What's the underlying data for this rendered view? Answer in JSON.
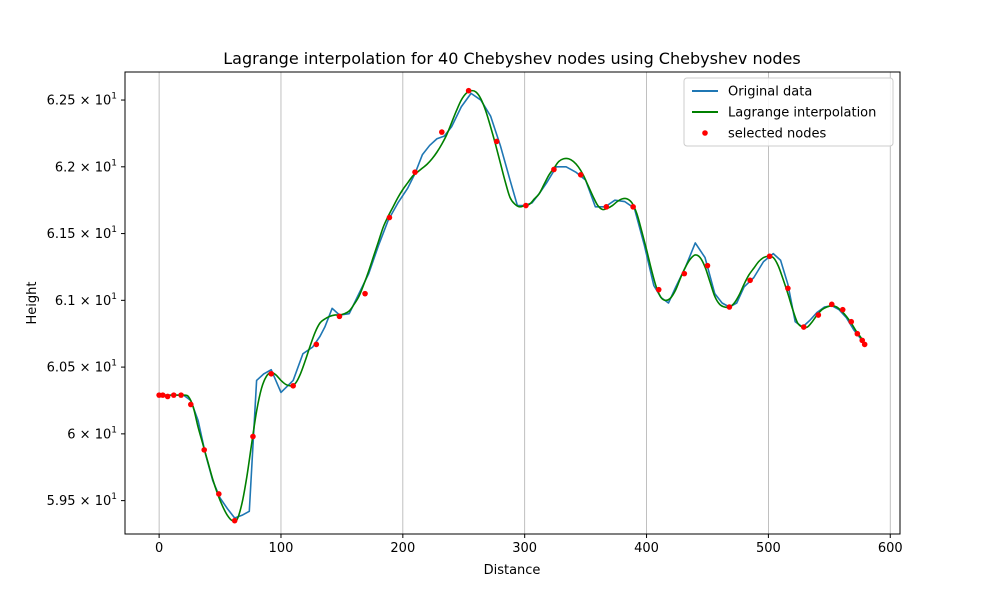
{
  "chart_data": {
    "type": "line",
    "title": "Lagrange interpolation for 40 Chebyshev nodes using Chebyshev nodes",
    "xlabel": "Distance",
    "ylabel": "Height",
    "xlim": [
      -28,
      608
    ],
    "ylim": [
      59.25,
      62.71
    ],
    "x_ticks": [
      {
        "value": 0,
        "label": "0"
      },
      {
        "value": 100,
        "label": "100"
      },
      {
        "value": 200,
        "label": "200"
      },
      {
        "value": 300,
        "label": "300"
      },
      {
        "value": 400,
        "label": "400"
      },
      {
        "value": 500,
        "label": "500"
      },
      {
        "value": 600,
        "label": "600"
      }
    ],
    "y_ticks": [
      {
        "value": 59.5,
        "mantissa": "5.95",
        "exp": "1"
      },
      {
        "value": 60.0,
        "mantissa": "6",
        "exp": "1"
      },
      {
        "value": 60.5,
        "mantissa": "6.05",
        "exp": "1"
      },
      {
        "value": 61.0,
        "mantissa": "6.1",
        "exp": "1"
      },
      {
        "value": 61.5,
        "mantissa": "6.15",
        "exp": "1"
      },
      {
        "value": 62.0,
        "mantissa": "6.2",
        "exp": "1"
      },
      {
        "value": 62.5,
        "mantissa": "6.25",
        "exp": "1"
      }
    ],
    "grid": "x-major",
    "legend_position": "top-right",
    "series": [
      {
        "name": "Original data",
        "kind": "line",
        "color": "#1f77b4",
        "x": [
          0,
          10,
          20,
          26,
          32,
          38,
          44,
          50,
          56,
          62,
          68,
          74,
          80,
          86,
          92,
          100,
          110,
          118,
          126,
          132,
          136,
          142,
          148,
          156,
          164,
          172,
          180,
          188,
          196,
          204,
          210,
          216,
          222,
          228,
          234,
          240,
          248,
          256,
          264,
          272,
          280,
          288,
          294,
          300,
          306,
          312,
          318,
          326,
          334,
          342,
          350,
          358,
          366,
          374,
          382,
          390,
          398,
          406,
          412,
          418,
          424,
          432,
          440,
          448,
          456,
          462,
          468,
          474,
          480,
          488,
          496,
          504,
          510,
          516,
          522,
          528,
          534,
          540,
          546,
          552,
          558,
          564,
          570,
          576,
          580
        ],
        "y": [
          60.29,
          60.29,
          60.29,
          60.25,
          60.1,
          59.85,
          59.65,
          59.52,
          59.44,
          59.37,
          59.39,
          59.42,
          60.4,
          60.45,
          60.48,
          60.31,
          60.4,
          60.6,
          60.65,
          60.73,
          60.8,
          60.94,
          60.89,
          60.9,
          61.05,
          61.2,
          61.41,
          61.6,
          61.73,
          61.84,
          61.95,
          62.09,
          62.16,
          62.21,
          62.23,
          62.3,
          62.45,
          62.55,
          62.5,
          62.38,
          62.16,
          61.9,
          61.71,
          61.71,
          61.73,
          61.8,
          61.88,
          62.0,
          62.0,
          61.96,
          61.9,
          61.7,
          61.7,
          61.75,
          61.74,
          61.69,
          61.42,
          61.11,
          61.02,
          60.98,
          61.1,
          61.25,
          61.43,
          61.32,
          61.05,
          60.98,
          60.95,
          60.98,
          61.1,
          61.17,
          61.29,
          61.35,
          61.3,
          61.12,
          60.84,
          60.8,
          60.85,
          60.91,
          60.95,
          60.96,
          60.93,
          60.87,
          60.78,
          60.71,
          60.67
        ],
        "smooth": false
      },
      {
        "name": "Lagrange interpolation",
        "kind": "line",
        "color": "#008000",
        "x": [
          0,
          4,
          8,
          12,
          16,
          20,
          24,
          28,
          32,
          36,
          40,
          44,
          48,
          52,
          56,
          60,
          64,
          68,
          72,
          76,
          80,
          84,
          88,
          92,
          96,
          100,
          104,
          108,
          112,
          116,
          120,
          124,
          128,
          132,
          136,
          140,
          144,
          148,
          152,
          156,
          160,
          164,
          168,
          172,
          176,
          180,
          184,
          188,
          192,
          196,
          200,
          204,
          208,
          212,
          216,
          220,
          224,
          228,
          232,
          236,
          240,
          244,
          248,
          252,
          256,
          260,
          264,
          268,
          272,
          276,
          280,
          284,
          288,
          292,
          296,
          300,
          304,
          308,
          312,
          316,
          320,
          324,
          328,
          332,
          336,
          340,
          344,
          348,
          352,
          356,
          360,
          364,
          368,
          372,
          376,
          380,
          384,
          388,
          392,
          396,
          400,
          404,
          408,
          412,
          416,
          420,
          424,
          428,
          432,
          436,
          440,
          444,
          448,
          452,
          456,
          460,
          464,
          468,
          472,
          476,
          480,
          484,
          488,
          492,
          496,
          500,
          504,
          508,
          512,
          516,
          520,
          524,
          528,
          532,
          536,
          540,
          544,
          548,
          552,
          556,
          560,
          564,
          568,
          572,
          576,
          579
        ],
        "y": [
          60.29,
          60.29,
          60.29,
          60.29,
          60.29,
          60.29,
          60.28,
          60.2,
          60.05,
          59.92,
          59.79,
          59.66,
          59.55,
          59.46,
          59.39,
          59.35,
          59.36,
          59.48,
          59.68,
          59.93,
          60.17,
          60.34,
          60.43,
          60.46,
          60.44,
          60.4,
          60.37,
          60.36,
          60.38,
          60.45,
          60.55,
          60.66,
          60.76,
          60.83,
          60.86,
          60.88,
          60.89,
          60.89,
          60.9,
          60.92,
          60.97,
          61.03,
          61.12,
          61.22,
          61.33,
          61.44,
          61.55,
          61.63,
          61.7,
          61.77,
          61.83,
          61.88,
          61.93,
          61.96,
          61.99,
          62.02,
          62.06,
          62.11,
          62.17,
          62.24,
          62.33,
          62.42,
          62.5,
          62.55,
          62.57,
          62.56,
          62.51,
          62.42,
          62.3,
          62.17,
          62.03,
          61.89,
          61.77,
          61.72,
          61.7,
          61.71,
          61.72,
          61.76,
          61.8,
          61.87,
          61.94,
          61.99,
          62.04,
          62.06,
          62.06,
          62.04,
          62.0,
          61.94,
          61.86,
          61.78,
          61.71,
          61.68,
          61.69,
          61.71,
          61.74,
          61.76,
          61.76,
          61.73,
          61.65,
          61.52,
          61.38,
          61.23,
          61.1,
          61.02,
          61.0,
          61.02,
          61.08,
          61.17,
          61.25,
          61.31,
          61.34,
          61.32,
          61.25,
          61.14,
          61.03,
          60.97,
          60.95,
          60.95,
          60.98,
          61.04,
          61.12,
          61.19,
          61.24,
          61.29,
          61.32,
          61.33,
          61.32,
          61.26,
          61.16,
          61.05,
          60.93,
          60.83,
          60.8,
          60.8,
          60.84,
          60.89,
          60.93,
          60.95,
          60.96,
          60.95,
          60.92,
          60.88,
          60.83,
          60.77,
          60.72,
          60.67
        ],
        "smooth": true
      },
      {
        "name": "selected nodes",
        "kind": "scatter",
        "color": "#ff0000",
        "x": [
          0,
          3,
          7,
          12,
          18,
          26,
          37,
          49,
          62,
          77,
          92,
          110,
          129,
          148,
          169,
          189,
          210,
          232,
          254,
          277,
          301,
          324,
          346,
          367,
          389,
          410,
          431,
          450,
          468,
          485,
          501,
          516,
          529,
          541,
          552,
          561,
          568,
          573,
          577,
          579
        ],
        "y": [
          60.29,
          60.29,
          60.28,
          60.29,
          60.29,
          60.22,
          59.88,
          59.55,
          59.35,
          59.98,
          60.45,
          60.36,
          60.67,
          60.88,
          61.05,
          61.62,
          61.96,
          62.26,
          62.57,
          62.19,
          61.71,
          61.98,
          61.94,
          61.7,
          61.7,
          61.08,
          61.2,
          61.26,
          60.95,
          61.15,
          61.33,
          61.09,
          60.8,
          60.89,
          60.97,
          60.93,
          60.84,
          60.75,
          60.7,
          60.67
        ]
      }
    ]
  }
}
